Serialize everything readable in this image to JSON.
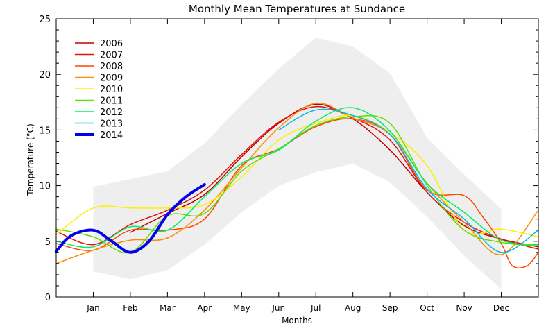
{
  "chart_data": {
    "type": "line",
    "title": "Monthly Mean Temperatures at Sundance",
    "xlabel": "Months",
    "ylabel": "Temperature (°C)",
    "xlim": [
      0,
      13
    ],
    "ylim": [
      0,
      25
    ],
    "y_ticks": [
      0,
      5,
      10,
      15,
      20,
      25
    ],
    "x_ticks": [
      {
        "label": "Jan",
        "x": 1
      },
      {
        "label": "Feb",
        "x": 2
      },
      {
        "label": "Mar",
        "x": 3
      },
      {
        "label": "Apr",
        "x": 4
      },
      {
        "label": "May",
        "x": 5
      },
      {
        "label": "Jun",
        "x": 6
      },
      {
        "label": "Jul",
        "x": 7
      },
      {
        "label": "Aug",
        "x": 8
      },
      {
        "label": "Sep",
        "x": 9
      },
      {
        "label": "Oct",
        "x": 10
      },
      {
        "label": "Nov",
        "x": 11
      },
      {
        "label": "Dec",
        "x": 12
      }
    ],
    "legend_position": "top-left",
    "range_band": {
      "color": "#eeeeee",
      "x": [
        1,
        2,
        3,
        4,
        5,
        6,
        7,
        8,
        9,
        10,
        11,
        12
      ],
      "upper": [
        9.9,
        10.6,
        11.3,
        13.8,
        17.3,
        20.5,
        23.3,
        22.5,
        20.1,
        14.3,
        11.0,
        7.9
      ],
      "lower": [
        2.3,
        1.6,
        2.4,
        4.7,
        7.6,
        10.0,
        11.2,
        12.0,
        10.3,
        7.2,
        3.7,
        0.7
      ]
    },
    "series": [
      {
        "name": "2006",
        "color": "#c00000",
        "width": 1.5,
        "x": [
          2,
          3,
          4,
          5,
          6,
          7,
          8,
          9,
          10,
          11,
          12,
          13
        ],
        "y": [
          5.8,
          7.5,
          9.2,
          12.6,
          15.6,
          17.3,
          16.0,
          13.2,
          9.4,
          6.4,
          5.2,
          4.5
        ]
      },
      {
        "name": "2007",
        "color": "#e01010",
        "width": 1.5,
        "x": [
          0,
          1,
          2,
          3,
          4,
          5,
          6,
          7,
          8,
          9,
          10,
          11,
          12,
          13
        ],
        "y": [
          5.9,
          4.7,
          6.5,
          7.8,
          9.6,
          12.8,
          15.7,
          17.1,
          16.1,
          14.1,
          9.4,
          6.7,
          5.2,
          4.3
        ]
      },
      {
        "name": "2008",
        "color": "#ff4500",
        "width": 1.5,
        "x": [
          0,
          1,
          2,
          3,
          4,
          5,
          6,
          7,
          8,
          9,
          10,
          11,
          11.5,
          12,
          12.3,
          12.7,
          13
        ],
        "y": [
          4.8,
          4.2,
          6.0,
          6.0,
          7.0,
          11.8,
          13.3,
          15.3,
          16.0,
          14.6,
          9.6,
          9.1,
          7.2,
          4.8,
          2.8,
          2.8,
          4.0
        ]
      },
      {
        "name": "2009",
        "color": "#ff8c00",
        "width": 1.5,
        "x": [
          0,
          1,
          2,
          3,
          4,
          5,
          6,
          7,
          8,
          9,
          10,
          11,
          12,
          13
        ],
        "y": [
          3.0,
          4.2,
          5.1,
          5.3,
          7.8,
          11.6,
          15.2,
          17.4,
          16.1,
          14.6,
          10.2,
          6.7,
          3.8,
          7.8
        ]
      },
      {
        "name": "2010",
        "color": "#ffee00",
        "width": 1.5,
        "x": [
          0,
          1,
          2,
          3,
          4,
          5,
          6,
          7,
          8,
          9,
          10,
          11,
          12,
          13
        ],
        "y": [
          5.6,
          8.0,
          8.0,
          8.0,
          8.3,
          10.8,
          14.1,
          15.6,
          16.3,
          14.8,
          11.8,
          6.0,
          6.1,
          5.4
        ]
      },
      {
        "name": "2011",
        "color": "#66dd00",
        "width": 1.5,
        "x": [
          0,
          1,
          2,
          3,
          4,
          5,
          6,
          7,
          8,
          9,
          10,
          11,
          12,
          13
        ],
        "y": [
          6.1,
          5.4,
          4.0,
          7.3,
          7.5,
          11.3,
          13.3,
          15.4,
          16.2,
          15.6,
          10.0,
          6.0,
          4.9,
          4.6
        ]
      },
      {
        "name": "2012",
        "color": "#00ee66",
        "width": 1.5,
        "x": [
          0,
          1,
          2,
          3,
          4,
          5,
          6,
          7,
          8,
          9,
          10,
          11,
          12,
          13
        ],
        "y": [
          5.0,
          4.5,
          6.3,
          6.0,
          9.0,
          12.0,
          13.2,
          15.8,
          17.0,
          14.9,
          10.2,
          7.6,
          5.1,
          4.7
        ]
      },
      {
        "name": "2013",
        "color": "#00bbee",
        "width": 1.5,
        "x": [
          6,
          7,
          8,
          9,
          10,
          11,
          12,
          13
        ],
        "y": [
          15.0,
          16.8,
          16.3,
          14.6,
          9.7,
          7.0,
          4.0,
          6.0
        ]
      },
      {
        "name": "2014",
        "color": "#0000ee",
        "width": 4,
        "x": [
          0,
          0.4,
          1,
          1.5,
          2,
          2.5,
          3,
          3.5,
          4
        ],
        "y": [
          4.1,
          5.5,
          6.0,
          5.0,
          4.0,
          5.0,
          7.4,
          9.0,
          10.1
        ]
      }
    ]
  }
}
